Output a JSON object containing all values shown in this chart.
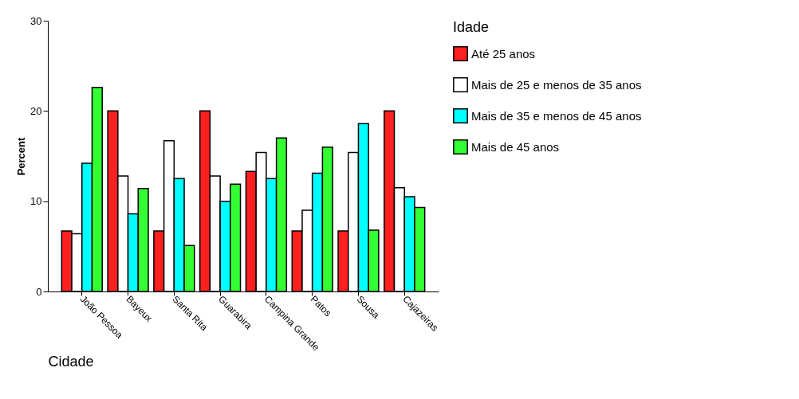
{
  "chart_data": {
    "type": "bar",
    "xlabel": "Cidade",
    "ylabel": "Percent",
    "legend_title": "Idade",
    "legend": "right",
    "grid": false,
    "categories": [
      "João Pessoa",
      "Bayeux",
      "Santa Rita",
      "Guarabira",
      "Campina Grande",
      "Patos",
      "Sousa",
      "Cajazeiras"
    ],
    "ylim": [
      0,
      30
    ],
    "yticks": [
      0,
      10,
      20,
      30
    ],
    "series": [
      {
        "name": "Até 25 anos",
        "color": "#ff2020",
        "values": [
          6.7,
          20,
          6.7,
          20,
          13.3,
          6.7,
          6.7,
          20
        ]
      },
      {
        "name": "Mais de 25 e menos de 35 anos",
        "color": "#ffffff",
        "values": [
          6.4,
          12.8,
          16.7,
          12.8,
          15.4,
          9.0,
          15.4,
          11.5
        ]
      },
      {
        "name": "Mais de 35 e menos de 45 anos",
        "color": "#00ffff",
        "values": [
          14.2,
          8.6,
          12.5,
          10.0,
          12.5,
          13.1,
          18.6,
          10.5
        ]
      },
      {
        "name": "Mais de 45 anos",
        "color": "#33ff33",
        "values": [
          22.6,
          11.4,
          5.1,
          11.9,
          17.0,
          16.0,
          6.8,
          9.3
        ]
      }
    ]
  }
}
